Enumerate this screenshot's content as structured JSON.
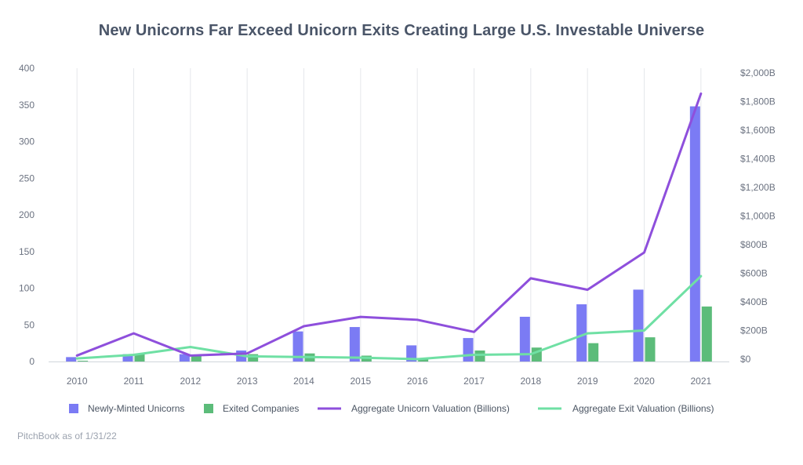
{
  "title": "New Unicorns Far Exceed Unicorn Exits Creating Large U.S. Investable Universe",
  "source": "PitchBook as of 1/31/22",
  "colors": {
    "newly_minted": "#7b7bf4",
    "exited": "#5cbc7a",
    "unicorn_valuation": "#8e4fdc",
    "exit_valuation": "#6fe0a4",
    "grid": "#e5e7eb",
    "axis_text": "#6b7280"
  },
  "chart_data": {
    "type": "bar",
    "categories": [
      "2010",
      "2011",
      "2012",
      "2013",
      "2014",
      "2015",
      "2016",
      "2017",
      "2018",
      "2019",
      "2020",
      "2021"
    ],
    "series": [
      {
        "name": "Newly-Minted Unicorns",
        "kind": "bar",
        "axis": "left",
        "values": [
          6,
          10,
          10,
          15,
          41,
          47,
          22,
          32,
          61,
          78,
          98,
          348
        ]
      },
      {
        "name": "Exited Companies",
        "kind": "bar",
        "axis": "left",
        "values": [
          1,
          10,
          9,
          10,
          11,
          8,
          4,
          15,
          19,
          25,
          33,
          75
        ]
      },
      {
        "name": "Aggregate Unicorn Valuation (Billions)",
        "kind": "line",
        "axis": "right",
        "values": [
          25,
          180,
          25,
          40,
          230,
          295,
          275,
          190,
          565,
          485,
          745,
          1855
        ]
      },
      {
        "name": "Aggregate Exit Valuation (Billions)",
        "kind": "line",
        "axis": "right",
        "values": [
          5,
          30,
          85,
          20,
          15,
          10,
          0,
          30,
          35,
          180,
          200,
          580
        ]
      }
    ],
    "y_left": {
      "min": 0,
      "max": 400,
      "ticks": [
        "0",
        "50",
        "100",
        "150",
        "200",
        "250",
        "300",
        "350",
        "400"
      ]
    },
    "y_right": {
      "min": 0,
      "max": 2000,
      "ticks": [
        "$0",
        "$200B",
        "$400B",
        "$600B",
        "$800B",
        "$1,000B",
        "$1,200B",
        "$1,400B",
        "$1,600B",
        "$1,800B",
        "$2,000B"
      ]
    },
    "grid": "vertical",
    "legend": "bottom"
  }
}
